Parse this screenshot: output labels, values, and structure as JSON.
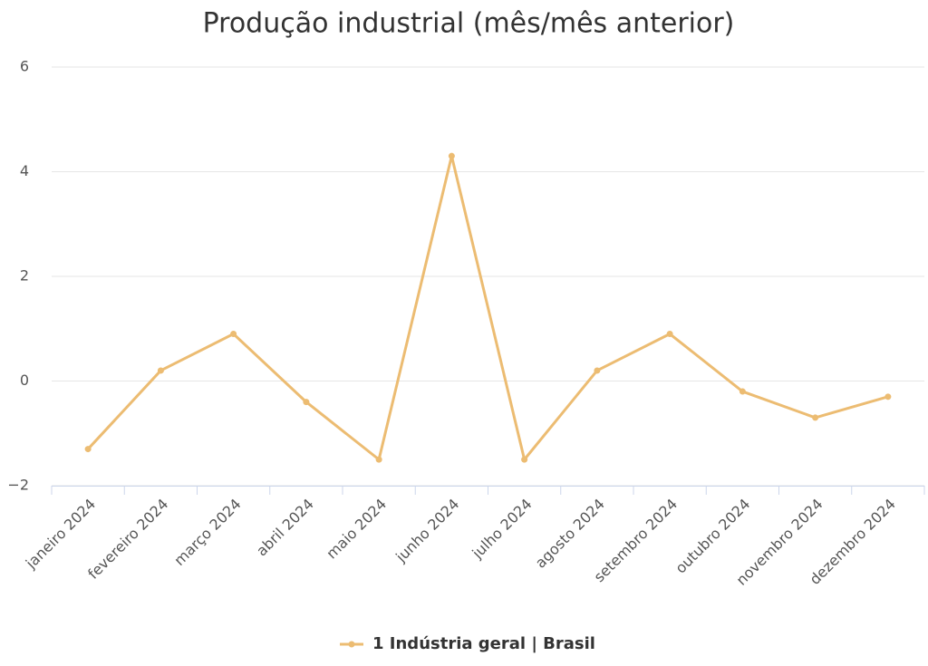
{
  "chart_data": {
    "type": "line",
    "title": "Produção industrial (mês/mês anterior)",
    "categories": [
      "janeiro 2024",
      "fevereiro 2024",
      "março 2024",
      "abril 2024",
      "maio 2024",
      "junho 2024",
      "julho 2024",
      "agosto 2024",
      "setembro 2024",
      "outubro 2024",
      "novembro 2024",
      "dezembro 2024"
    ],
    "series": [
      {
        "name": "1 Indústria geral | Brasil",
        "color": "#ecbc72",
        "values": [
          -1.3,
          0.2,
          0.9,
          -0.4,
          -1.5,
          4.3,
          -1.5,
          0.2,
          0.9,
          -0.2,
          -0.7,
          -0.3
        ]
      }
    ],
    "ylim": [
      -2,
      6
    ],
    "yticks": [
      {
        "value": -2,
        "label": "−2"
      },
      0,
      2,
      4,
      6
    ],
    "grid": true,
    "legend": "bottom"
  }
}
